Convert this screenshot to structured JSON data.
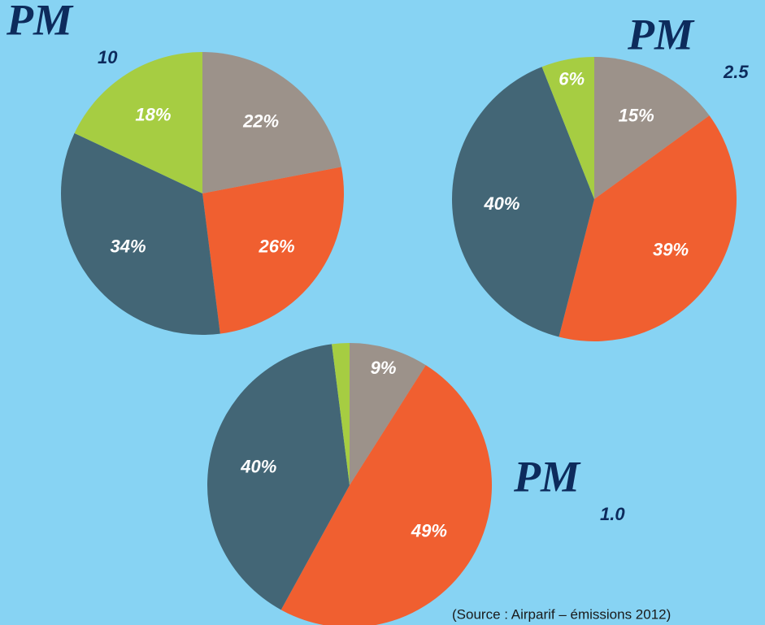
{
  "chart_data": [
    {
      "type": "pie",
      "title": "PM",
      "title_subscript": "10",
      "categories": [
        null,
        null,
        null,
        null
      ],
      "values": [
        22,
        26,
        34,
        18
      ],
      "value_labels": [
        "22%",
        "26%",
        "34%",
        "18%"
      ],
      "colors": [
        "#9c928a",
        "#f05f30",
        "#436676",
        "#a6cd42"
      ]
    },
    {
      "type": "pie",
      "title": "PM",
      "title_subscript": "2.5",
      "categories": [
        null,
        null,
        null,
        null
      ],
      "values": [
        15,
        39,
        40,
        6
      ],
      "value_labels": [
        "15%",
        "39%",
        "40%",
        "6%"
      ],
      "colors": [
        "#9c928a",
        "#f05f30",
        "#436676",
        "#a6cd42"
      ]
    },
    {
      "type": "pie",
      "title": "PM",
      "title_subscript": "1.0",
      "categories": [
        null,
        null,
        null,
        null
      ],
      "values": [
        9,
        49,
        40,
        2
      ],
      "value_labels": [
        "9%",
        "49%",
        "40%",
        null
      ],
      "colors": [
        "#9c928a",
        "#f05f30",
        "#436676",
        "#a6cd42"
      ]
    }
  ],
  "source": "(Source : Airparif – émissions 2012)"
}
